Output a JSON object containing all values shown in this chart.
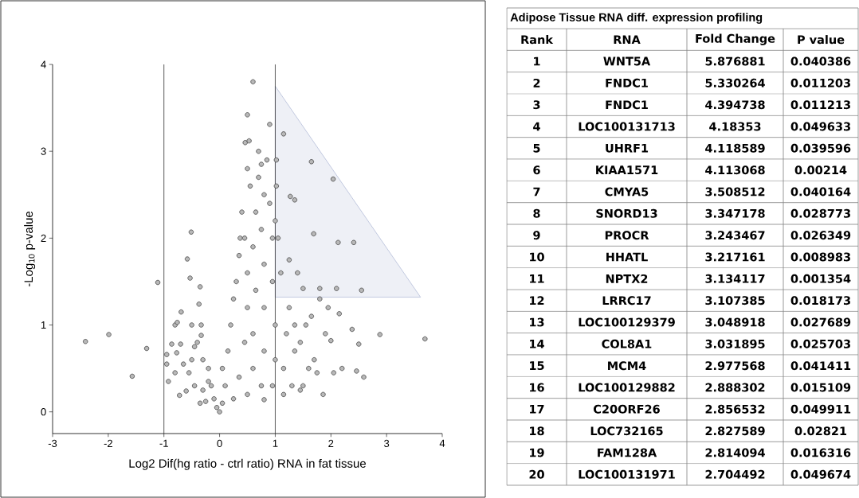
{
  "chart_data": [
    {
      "type": "scatter",
      "xlabel": "Log2 Dif(hg ratio - ctrl ratio) RNA in fat tissue",
      "ylabel": "-Log$_{10}$ p-value",
      "xlim": [
        -3,
        4
      ],
      "ylim": [
        -0.25,
        4
      ],
      "xticks": [
        -3,
        -2,
        -1,
        0,
        1,
        2,
        3,
        4
      ],
      "yticks": [
        0,
        1,
        2,
        3,
        4
      ],
      "grid": false,
      "ref_lines": [
        {
          "axis": "x",
          "value": -1,
          "color": "#333333"
        },
        {
          "axis": "x",
          "value": 1,
          "color": "#333333"
        }
      ],
      "series": [
        {
          "type": "area",
          "color": "#b4bcd8",
          "marker": "none",
          "x": [
            1,
            1,
            3.61
          ],
          "values": [
            3.75,
            1.32,
            1.32
          ]
        },
        {
          "type": "scatter",
          "color": "#333333",
          "marker": "circle",
          "x": [
            -2.41,
            -1.99,
            -1.57,
            -1.31,
            -1.11,
            -0.95,
            -0.95,
            -0.92,
            -0.86,
            -0.8,
            -0.76,
            -0.77,
            -0.8,
            -0.69,
            -0.7,
            -0.72,
            -0.6,
            -0.65,
            -0.58,
            -0.53,
            -0.51,
            -0.5,
            -0.55,
            -0.5,
            -0.45,
            -0.45,
            -0.4,
            -0.37,
            -0.35,
            -0.33,
            -0.33,
            -0.3,
            -0.35,
            -0.3,
            -0.25,
            -0.2,
            -0.2,
            -0.15,
            -0.1,
            -0.05,
            0,
            0.05,
            0.1,
            0.05,
            0.15,
            0.2,
            0.25,
            0.3,
            0.35,
            0.37,
            0.4,
            0.45,
            0.5,
            0.5,
            0.45,
            0.35,
            0.25,
            0.5,
            0.6,
            0.6,
            0.65,
            0.6,
            0.65,
            0.55,
            0.5,
            0.7,
            0.8,
            0.75,
            0.8,
            0.8,
            0.8,
            0.75,
            0.95,
            1.0,
            1.0,
            0.95,
            0.95,
            0.9,
            0.85,
            0.46,
            0.53,
            0.6,
            0.5,
            0.9,
            0.7,
            0.75,
            1.15,
            1.2,
            1.25,
            1.1,
            1.05,
            1.0,
            1.3,
            1.35,
            1.35,
            1.15,
            0.8,
            1.15,
            1.02,
            1.02,
            1.27,
            1.35,
            1.65,
            2.04,
            1.69,
            2.13,
            2.41,
            2.55,
            2.1,
            1.8,
            1.5,
            1.25,
            1.4,
            2.15,
            2.88,
            3.69,
            2.38,
            2.5,
            2.46,
            2.59,
            1.86,
            2.2,
            2.05,
            1.9,
            2.0,
            1.7,
            1.6,
            1.75,
            1.5,
            1.45,
            1.65,
            1.8,
            1.95,
            1.55,
            1.45
          ],
          "values": [
            0.81,
            0.89,
            0.41,
            0.73,
            1.49,
            0.66,
            0.55,
            0.35,
            0.78,
            1.0,
            1.03,
            0.68,
            0.45,
            1.15,
            0.78,
            0.19,
            0.24,
            0.55,
            1.76,
            1.54,
            2.07,
            1.0,
            0.45,
            0.6,
            0.3,
            0.75,
            0.8,
            1.24,
            1.44,
            1.0,
            0.88,
            0.6,
            0.1,
            0.25,
            0.12,
            0.5,
            0.35,
            0.3,
            0.15,
            0.05,
            0,
            0.1,
            0.3,
            0.5,
            0.7,
            1.0,
            1.3,
            1.5,
            1.8,
            2.0,
            2.3,
            2.0,
            1.6,
            1.2,
            0.8,
            0.4,
            0.15,
            0.2,
            0.5,
            0.9,
            1.4,
            1.9,
            2.3,
            2.6,
            2.8,
            2.7,
            2.5,
            2.1,
            1.7,
            1.2,
            0.7,
            0.3,
            0.3,
            0.6,
            1.0,
            1.5,
            2.0,
            2.4,
            2.9,
            3.1,
            3.12,
            3.8,
            3.42,
            3.31,
            3.0,
            2.85,
            0.5,
            0.9,
            1.2,
            1.6,
            2.0,
            2.2,
            0.3,
            0.7,
            1.0,
            0.2,
            0.14,
            3.2,
            2.9,
            2.6,
            2.48,
            2.44,
            2.88,
            2.68,
            2.05,
            1.95,
            1.95,
            1.4,
            1.42,
            1.42,
            1.42,
            1.75,
            1.6,
            1.13,
            0.89,
            0.84,
            0.95,
            0.78,
            0.47,
            0.4,
            0.2,
            0.5,
            0.45,
            0.9,
            0.82,
            0.6,
            0.5,
            0.45,
            0.3,
            0.8,
            1.1,
            1.3,
            1.2,
            1.0,
            0.25
          ]
        }
      ]
    },
    {
      "type": "heatmap",
      "title": "Adipose Tissue RNA diff. expression profiling",
      "ylabel": "Rank",
      "categories": [
        "RNA",
        "Fold Change",
        "P value"
      ],
      "y_categories": [
        "1",
        "2",
        "3",
        "4",
        "5",
        "6",
        "7",
        "8",
        "9",
        "10",
        "11",
        "12",
        "13",
        "14",
        "15",
        "16",
        "17",
        "18",
        "19",
        "20"
      ],
      "cells": [
        [
          null,
          null,
          null
        ],
        [
          null,
          null,
          null
        ],
        [
          null,
          null,
          null
        ],
        [
          null,
          null,
          null
        ],
        [
          null,
          null,
          null
        ],
        [
          null,
          null,
          null
        ],
        [
          null,
          null,
          null
        ],
        [
          null,
          null,
          null
        ],
        [
          null,
          null,
          null
        ],
        [
          null,
          null,
          null
        ],
        [
          null,
          null,
          null
        ],
        [
          null,
          null,
          null
        ],
        [
          null,
          null,
          null
        ],
        [
          null,
          null,
          null
        ],
        [
          null,
          null,
          null
        ],
        [
          null,
          null,
          null
        ],
        [
          null,
          null,
          null
        ],
        [
          null,
          null,
          null
        ],
        [
          null,
          null,
          null
        ],
        [
          null,
          null,
          null
        ]
      ],
      "cell_labels": [
        [
          "WNT5A",
          "5.876881",
          "0.040386"
        ],
        [
          "FNDC1",
          "5.330264",
          "0.011203"
        ],
        [
          "FNDC1",
          "4.394738",
          "0.011213"
        ],
        [
          "LOC100131713",
          "4.18353",
          "0.049633"
        ],
        [
          "UHRF1",
          "4.118589",
          "0.039596"
        ],
        [
          "KIAA1571",
          "4.113068",
          "0.00214"
        ],
        [
          "CMYA5",
          "3.508512",
          "0.040164"
        ],
        [
          "SNORD13",
          "3.347178",
          "0.028773"
        ],
        [
          "PROCR",
          "3.243467",
          "0.026349"
        ],
        [
          "HHATL",
          "3.217161",
          "0.008983"
        ],
        [
          "NPTX2",
          "3.134117",
          "0.001354"
        ],
        [
          "LRRC17",
          "3.107385",
          "0.018173"
        ],
        [
          "LOC100129379",
          "3.048918",
          "0.027689"
        ],
        [
          "COL8A1",
          "3.031895",
          "0.025703"
        ],
        [
          "MCM4",
          "2.977568",
          "0.041411"
        ],
        [
          "LOC100129882",
          "2.888302",
          "0.015109"
        ],
        [
          "C20ORF26",
          "2.856532",
          "0.049911"
        ],
        [
          "LOC732165",
          "2.827589",
          "0.02821"
        ],
        [
          "FAM128A",
          "2.814094",
          "0.016316"
        ],
        [
          "LOC100131971",
          "2.704492",
          "0.049674"
        ]
      ]
    }
  ]
}
